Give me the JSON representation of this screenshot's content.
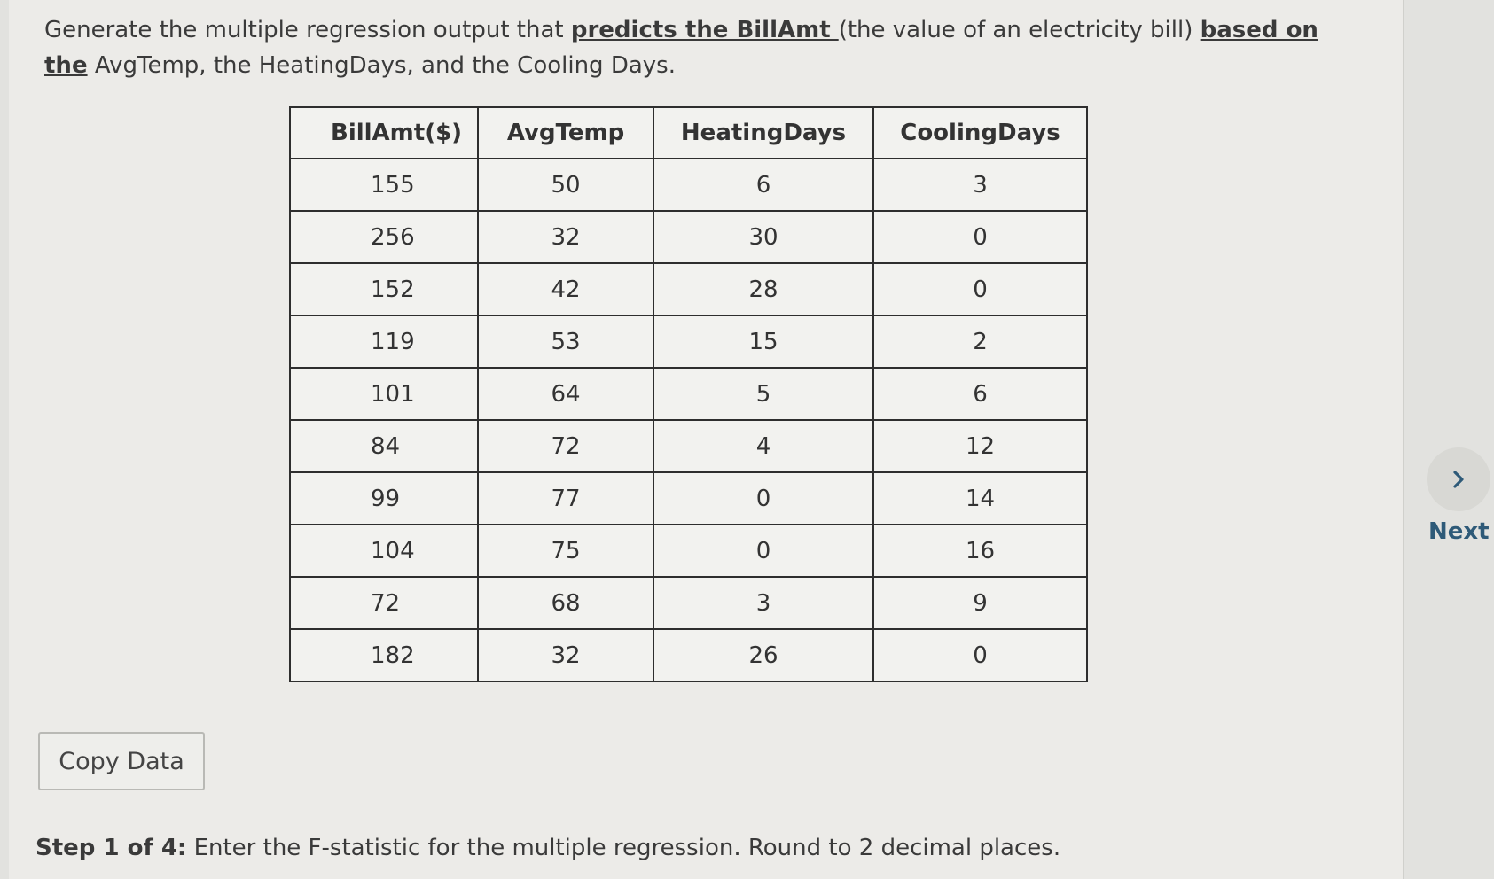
{
  "question": {
    "text_1": "Generate the multiple regression output that ",
    "emphasis_1": "predicts the BillAmt ",
    "text_2": "(the value of an electricity bill) ",
    "emphasis_2": "based on the",
    "text_3": " AvgTemp, the HeatingDays, and the Cooling Days."
  },
  "table": {
    "headers": [
      "BillAmt($)",
      "AvgTemp",
      "HeatingDays",
      "CoolingDays"
    ],
    "rows": [
      [
        "155",
        "50",
        "6",
        "3"
      ],
      [
        "256",
        "32",
        "30",
        "0"
      ],
      [
        "152",
        "42",
        "28",
        "0"
      ],
      [
        "119",
        "53",
        "15",
        "2"
      ],
      [
        "101",
        "64",
        "5",
        "6"
      ],
      [
        "84",
        "72",
        "4",
        "12"
      ],
      [
        "99",
        "77",
        "0",
        "14"
      ],
      [
        "104",
        "75",
        "0",
        "16"
      ],
      [
        "72",
        "68",
        "3",
        "9"
      ],
      [
        "182",
        "32",
        "26",
        "0"
      ]
    ]
  },
  "copy_button": {
    "label": "Copy Data"
  },
  "step": {
    "prefix": "Step 1 of 4:",
    "text": " Enter the F-statistic for the multiple regression. Round to 2 decimal places."
  },
  "next": {
    "label": "Next",
    "icon": "chevron-right-icon",
    "color": "#2e5a78"
  }
}
